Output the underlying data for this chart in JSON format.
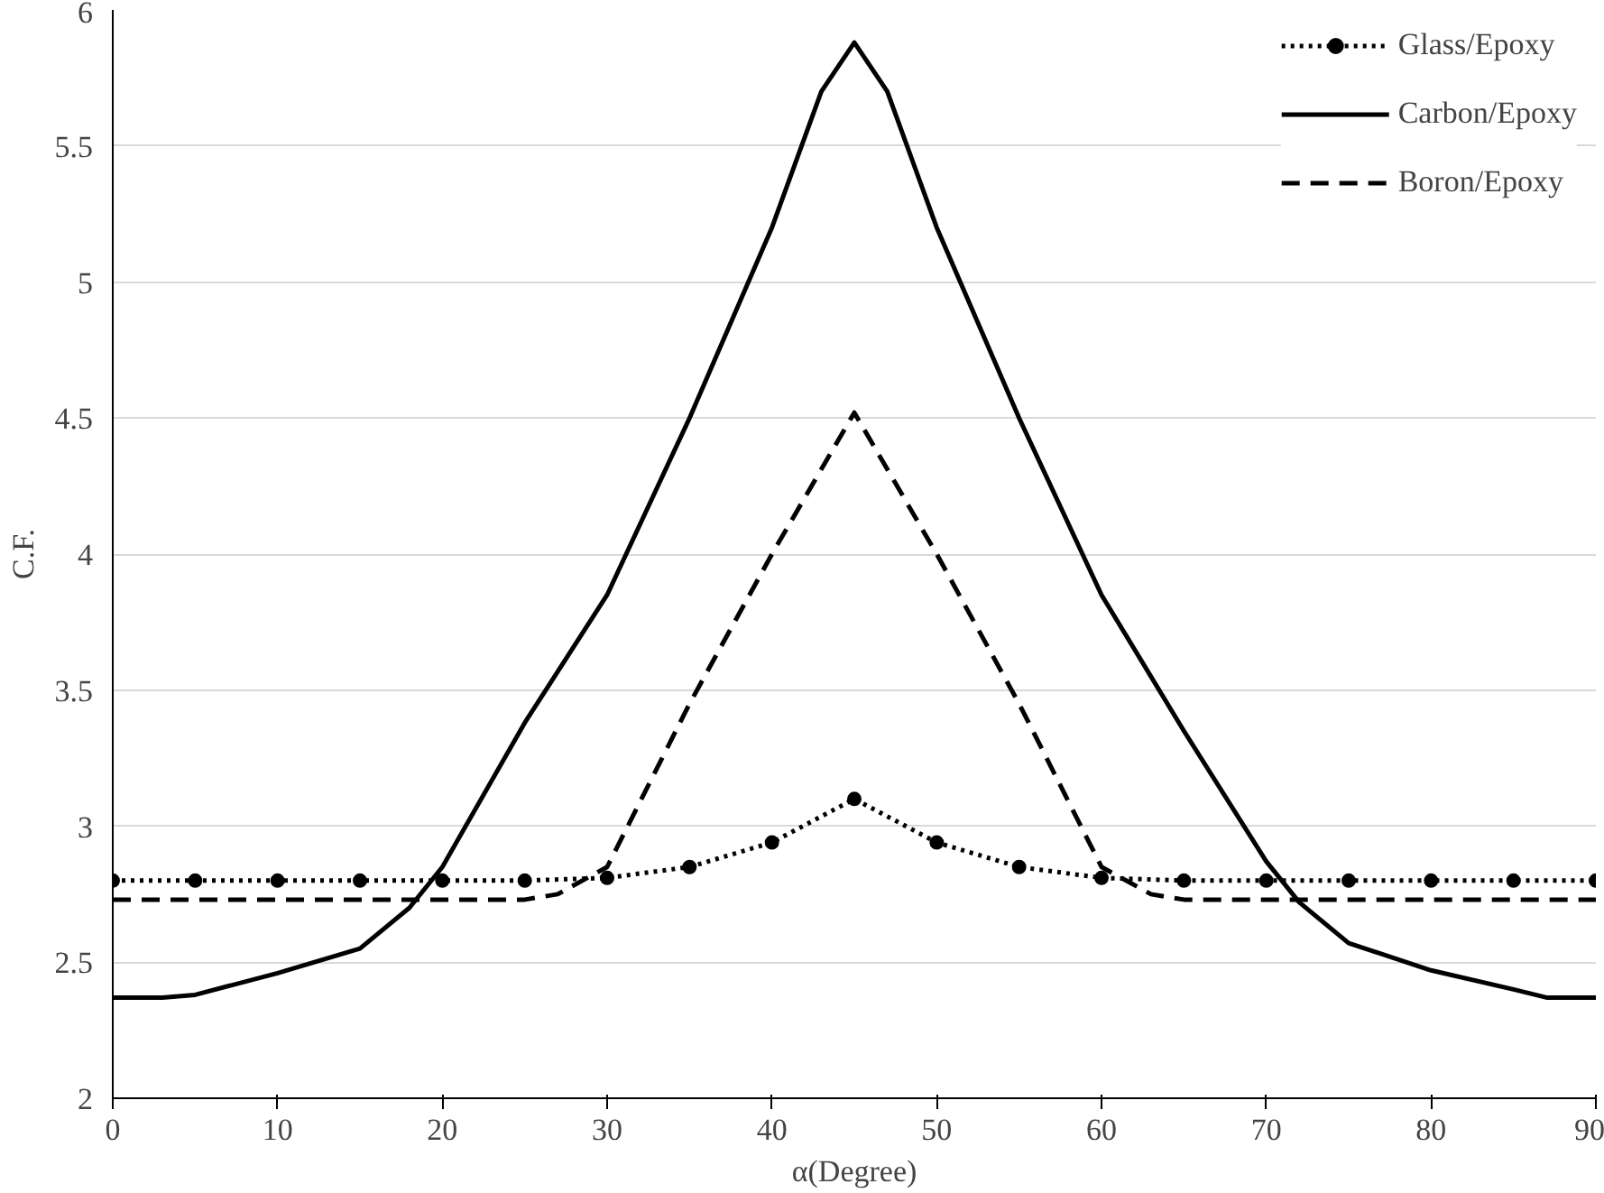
{
  "chart_data": {
    "type": "line",
    "xlabel": "α(Degree)",
    "ylabel": "C.F.",
    "xlim": [
      0,
      90
    ],
    "ylim": [
      2,
      6
    ],
    "xticks": [
      0,
      10,
      20,
      30,
      40,
      50,
      60,
      70,
      80,
      90
    ],
    "yticks": [
      2,
      2.5,
      3,
      3.5,
      4,
      4.5,
      5,
      5.5,
      6
    ],
    "grid": "y",
    "legend": "top right",
    "series": [
      {
        "name": "Glass/Epoxy",
        "color": "#000000",
        "line_style": "dotted",
        "marker": "circle",
        "x": [
          0,
          5,
          10,
          15,
          20,
          25,
          30,
          35,
          40,
          45,
          50,
          55,
          60,
          65,
          70,
          75,
          80,
          85,
          90
        ],
        "values": [
          2.8,
          2.8,
          2.8,
          2.8,
          2.8,
          2.8,
          2.81,
          2.85,
          2.94,
          3.1,
          2.94,
          2.85,
          2.81,
          2.8,
          2.8,
          2.8,
          2.8,
          2.8,
          2.8
        ]
      },
      {
        "name": "Carbon/Epoxy",
        "color": "#000000",
        "line_style": "solid",
        "marker": "none",
        "x": [
          0,
          3,
          5,
          10,
          15,
          18,
          20,
          25,
          30,
          35,
          40,
          43,
          45,
          47,
          50,
          55,
          60,
          65,
          70,
          72,
          75,
          80,
          85,
          87,
          90
        ],
        "values": [
          2.37,
          2.37,
          2.38,
          2.46,
          2.55,
          2.7,
          2.85,
          3.38,
          3.85,
          4.5,
          5.2,
          5.7,
          5.88,
          5.7,
          5.2,
          4.5,
          3.85,
          3.35,
          2.87,
          2.72,
          2.57,
          2.47,
          2.4,
          2.37,
          2.37
        ]
      },
      {
        "name": "Boron/Epoxy",
        "color": "#000000",
        "line_style": "dashed",
        "marker": "none",
        "x": [
          0,
          5,
          10,
          15,
          20,
          25,
          27,
          30,
          35,
          40,
          45,
          50,
          55,
          60,
          63,
          65,
          70,
          75,
          80,
          85,
          90
        ],
        "values": [
          2.73,
          2.73,
          2.73,
          2.73,
          2.73,
          2.73,
          2.75,
          2.85,
          3.45,
          4.0,
          4.52,
          4.0,
          3.45,
          2.85,
          2.75,
          2.73,
          2.73,
          2.73,
          2.73,
          2.73,
          2.73
        ]
      }
    ]
  }
}
